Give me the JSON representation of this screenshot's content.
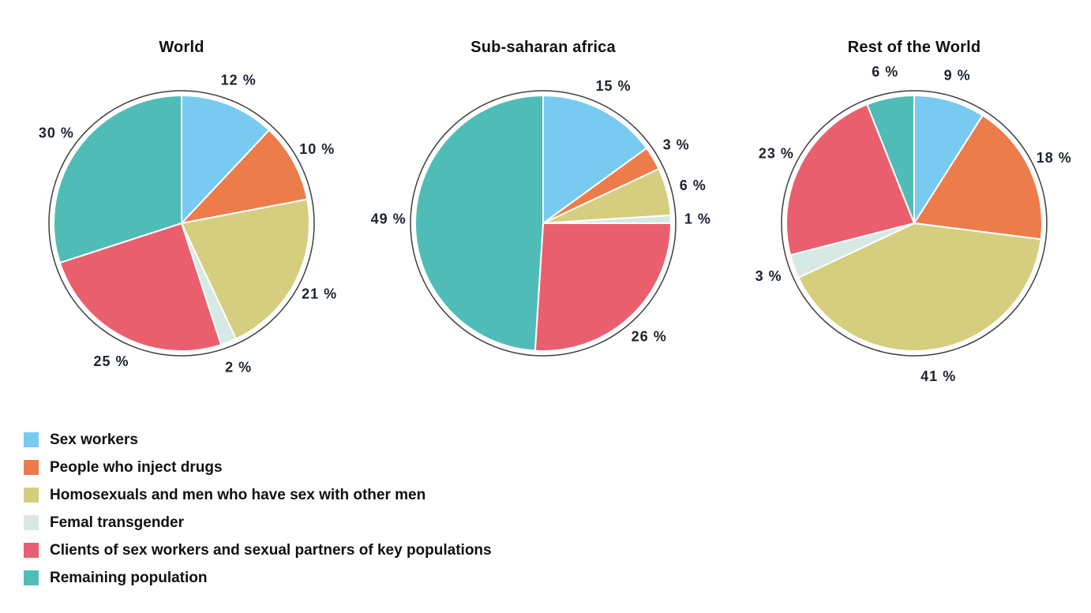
{
  "palette": [
    "#79CAF0",
    "#ED7C4B",
    "#D5CE7F",
    "#D6E9E5",
    "#EA5F6E",
    "#50BCB7"
  ],
  "style": {
    "slice_separator_color": "#ffffff",
    "outer_ring_color": "#404040",
    "label_color": "#1c222e",
    "background": "#ffffff"
  },
  "chart_data": [
    {
      "type": "pie",
      "title": "World",
      "categories": [
        "Sex workers",
        "People who inject drugs",
        "Homosexuals and men who have sex with other men",
        "Femal transgender",
        "Clients of sex workers and sexual partners of key populations",
        "Remaining population"
      ],
      "values": [
        12,
        10,
        21,
        2,
        25,
        30
      ],
      "labels": [
        "12 %",
        "10 %",
        "21 %",
        "2 %",
        "25 %",
        "30 %"
      ],
      "unit": "%",
      "start_angle_deg": 0,
      "direction": "clockwise",
      "label_position": "outside",
      "legend_position": "bottom-left-shared"
    },
    {
      "type": "pie",
      "title": "Sub-saharan africa",
      "categories": [
        "Sex workers",
        "People who inject drugs",
        "Homosexuals and men who have sex with other men",
        "Femal transgender",
        "Clients of sex workers and sexual partners of key populations",
        "Remaining population"
      ],
      "values": [
        15,
        3,
        6,
        1,
        26,
        49
      ],
      "labels": [
        "15 %",
        "3 %",
        "6 %",
        "1 %",
        "26 %",
        "49 %"
      ],
      "unit": "%",
      "start_angle_deg": 0,
      "direction": "clockwise",
      "label_position": "outside",
      "legend_position": "bottom-left-shared"
    },
    {
      "type": "pie",
      "title": "Rest of the World",
      "categories": [
        "Sex workers",
        "People who inject drugs",
        "Homosexuals and men who have sex with other men",
        "Femal transgender",
        "Clients of sex workers and sexual partners of key populations",
        "Remaining population"
      ],
      "values": [
        9,
        18,
        41,
        3,
        23,
        6
      ],
      "labels": [
        "9 %",
        "18 %",
        "41 %",
        "3 %",
        "23 %",
        "6 %"
      ],
      "unit": "%",
      "start_angle_deg": 0,
      "direction": "clockwise",
      "label_position": "outside",
      "legend_position": "bottom-left-shared"
    }
  ],
  "legend": {
    "items": [
      {
        "label": "Sex workers",
        "color": "#79CAF0"
      },
      {
        "label": "People who inject drugs",
        "color": "#ED7C4B"
      },
      {
        "label": "Homosexuals and men who have sex with other men",
        "color": "#D5CE7F"
      },
      {
        "label": "Femal transgender",
        "color": "#D6E9E5"
      },
      {
        "label": "Clients of sex workers and sexual partners of key populations",
        "color": "#EA5F6E"
      },
      {
        "label": "Remaining population",
        "color": "#50BCB7"
      }
    ]
  }
}
